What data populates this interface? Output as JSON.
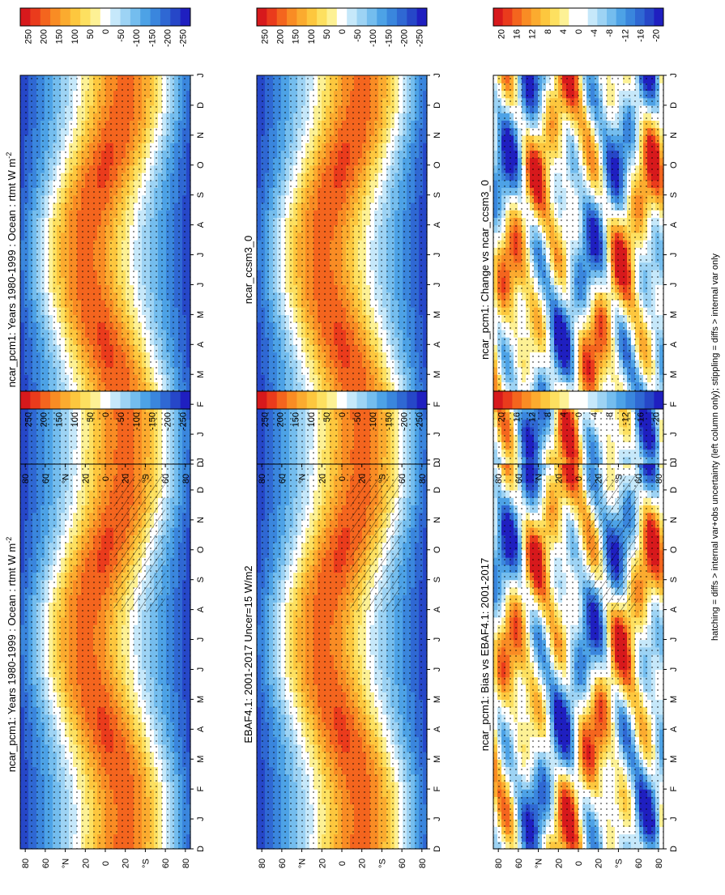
{
  "footnote": "hatching = diffs > internal var+obs uncertainty (left column only); stippling = diffs > internal var only",
  "months": [
    "D",
    "J",
    "F",
    "M",
    "A",
    "M",
    "J",
    "J",
    "A",
    "S",
    "O",
    "N",
    "D",
    "J"
  ],
  "lat_ticks": [
    {
      "lat": 80,
      "label": "80"
    },
    {
      "lat": 60,
      "label": "60"
    },
    {
      "lat": 40,
      "label": "°N"
    },
    {
      "lat": 20,
      "label": "20"
    },
    {
      "lat": 0,
      "label": "0"
    },
    {
      "lat": -20,
      "label": "20"
    },
    {
      "lat": -40,
      "label": "°S"
    },
    {
      "lat": -60,
      "label": "60"
    },
    {
      "lat": -80,
      "label": "80"
    }
  ],
  "colors": {
    "abs_scale": [
      "#d7191c",
      "#ea3b1c",
      "#f4651e",
      "#f98c24",
      "#fbab2f",
      "#fdc73e",
      "#fde060",
      "#fdf195",
      "#ffffff",
      "#c6e8fa",
      "#9dd3f4",
      "#74bdee",
      "#4da2e6",
      "#3a86dd",
      "#2f68d3",
      "#2647c8",
      "#1f1fc0"
    ],
    "diff_scale": [
      "#d7191c",
      "#ea3b1c",
      "#f4651e",
      "#f98c24",
      "#fbab2f",
      "#fdc73e",
      "#fde060",
      "#fdf195",
      "#ffffff",
      "#ffffff",
      "#c6e8fa",
      "#9dd3f4",
      "#74bdee",
      "#4da2e6",
      "#3a86dd",
      "#2f68d3",
      "#2647c8",
      "#1f1fc0"
    ]
  },
  "panels": [
    {
      "id": "model-left",
      "title": "ncar_pcm1: Years 1980-1999 : Ocean : rtmt W m",
      "unit_sup": "-2",
      "kind": "abs",
      "hatching": true,
      "stippling": true
    },
    {
      "id": "obs",
      "title": "EBAF4.1: 2001-2017 Uncer=15 W/m2",
      "unit_sup": "",
      "kind": "abs",
      "hatching": true,
      "stippling": true
    },
    {
      "id": "bias",
      "title": "ncar_pcm1: Bias vs EBAF4.1: 2001-2017",
      "unit_sup": "",
      "kind": "bias",
      "hatching": true,
      "stippling": true
    },
    {
      "id": "model-right",
      "title": "ncar_pcm1: Years 1980-1999 : Ocean : rtmt W m",
      "unit_sup": "-2",
      "kind": "abs",
      "hatching": false,
      "stippling": true
    },
    {
      "id": "ref",
      "title": "ncar_ccsm3_0",
      "unit_sup": "",
      "kind": "abs",
      "hatching": false,
      "stippling": true
    },
    {
      "id": "change",
      "title": "ncar_pcm1: Change vs ncar_ccsm3_0",
      "unit_sup": "",
      "kind": "change",
      "hatching": false,
      "stippling": true
    }
  ],
  "colorbars": [
    {
      "id": "cb-abs-1",
      "labels": [
        "250",
        "200",
        "150",
        "100",
        "50",
        "0",
        "-50",
        "-100",
        "-150",
        "-200",
        "-250"
      ]
    },
    {
      "id": "cb-abs-2",
      "labels": [
        "250",
        "200",
        "150",
        "100",
        "50",
        "0",
        "-50",
        "-100",
        "-150",
        "-200",
        "-250"
      ]
    },
    {
      "id": "cb-diff-1",
      "labels": [
        "20",
        "16",
        "12",
        "8",
        "4",
        "0",
        "-4",
        "-8",
        "-12",
        "-16",
        "-20"
      ]
    },
    {
      "id": "cb-abs-3",
      "labels": [
        "250",
        "200",
        "150",
        "100",
        "50",
        "0",
        "-50",
        "-100",
        "-150",
        "-200",
        "-250"
      ]
    },
    {
      "id": "cb-abs-4",
      "labels": [
        "250",
        "200",
        "150",
        "100",
        "50",
        "0",
        "-50",
        "-100",
        "-150",
        "-200",
        "-250"
      ]
    },
    {
      "id": "cb-diff-2",
      "labels": [
        "20",
        "16",
        "12",
        "8",
        "4",
        "0",
        "-4",
        "-8",
        "-12",
        "-16",
        "-20"
      ]
    }
  ],
  "chart_data": {
    "type": "heatmap",
    "description_axes": {
      "x": "month of year (D..J, climatological annual cycle)",
      "y": "latitude (80°N to 80°S)"
    },
    "abs_levels_W_m2": [
      250,
      200,
      150,
      100,
      50,
      0,
      -50,
      -100,
      -150,
      -200,
      -250
    ],
    "diff_levels_W_m2": [
      20,
      16,
      12,
      8,
      4,
      0,
      -4,
      -8,
      -12,
      -16,
      -20
    ],
    "pattern": "Net TOA radiation: positive (yellow-red) in summer hemisphere subtropics/tropics, negative (blue) at high latitudes in winter; peak ~200 W m-2 near 30°S in DJF and near 20-30°N in JJA; minimum ~-200 W m-2 near the winter pole."
  }
}
